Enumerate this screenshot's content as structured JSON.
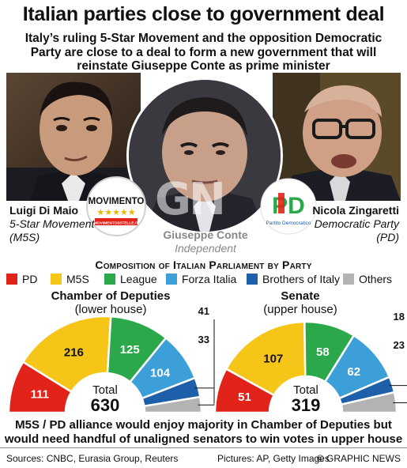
{
  "headline": {
    "title": "Italian parties close to government deal",
    "subtitle": "Italy’s ruling 5-Star Movement and the opposition Democratic Party are close to a deal to form a new government that will reinstate Giuseppe Conte as prime minister"
  },
  "people": {
    "left": {
      "name": "Luigi Di Maio",
      "party": "5-Star Movement (M5S)"
    },
    "center": {
      "name": "Giuseppe Conte",
      "party": "Independent"
    },
    "right": {
      "name": "Nicola Zingaretti",
      "party": "Democratic Party (PD)"
    }
  },
  "logos": {
    "m5s": {
      "word": "MOVIMENTO",
      "url": "MOVIMENTO5STELLE.IT",
      "stars": "★★★★★"
    },
    "pd": {
      "word": "PD",
      "sub": "Partito Democratico"
    }
  },
  "watermark": "GN",
  "section_title": "Composition of Italian Parliament by Party",
  "legend": [
    {
      "label": "PD",
      "color": "#e2231a"
    },
    {
      "label": "M5S",
      "color": "#f5c518"
    },
    {
      "label": "League",
      "color": "#2aa84a"
    },
    {
      "label": "Forza Italia",
      "color": "#3d9fd8"
    },
    {
      "label": "Brothers of Italy",
      "color": "#1d5fa8"
    },
    {
      "label": "Others",
      "color": "#b3b3b3"
    }
  ],
  "chart_data": [
    {
      "type": "pie",
      "title": "Chamber of Deputies",
      "subtitle": "(lower house)",
      "categories": [
        "PD",
        "M5S",
        "League",
        "Forza Italia",
        "Brothers of Italy",
        "Others"
      ],
      "values": [
        111,
        216,
        125,
        104,
        41,
        33
      ],
      "total_label": "Total",
      "total": 630
    },
    {
      "type": "pie",
      "title": "Senate",
      "subtitle": "(upper house)",
      "categories": [
        "PD",
        "M5S",
        "League",
        "Forza Italia",
        "Brothers of Italy",
        "Others"
      ],
      "values": [
        51,
        107,
        58,
        62,
        18,
        23
      ],
      "total_label": "Total",
      "total": 319
    }
  ],
  "bottom_text": "M5S / PD alliance would enjoy majority in Chamber of Deputies but would need handful of unaligned senators to win votes in upper house",
  "footer": {
    "sources": "Sources: CNBC, Eurasia Group, Reuters",
    "pictures": "Pictures: AP, Getty Images",
    "credit": "© GRAPHIC NEWS"
  }
}
